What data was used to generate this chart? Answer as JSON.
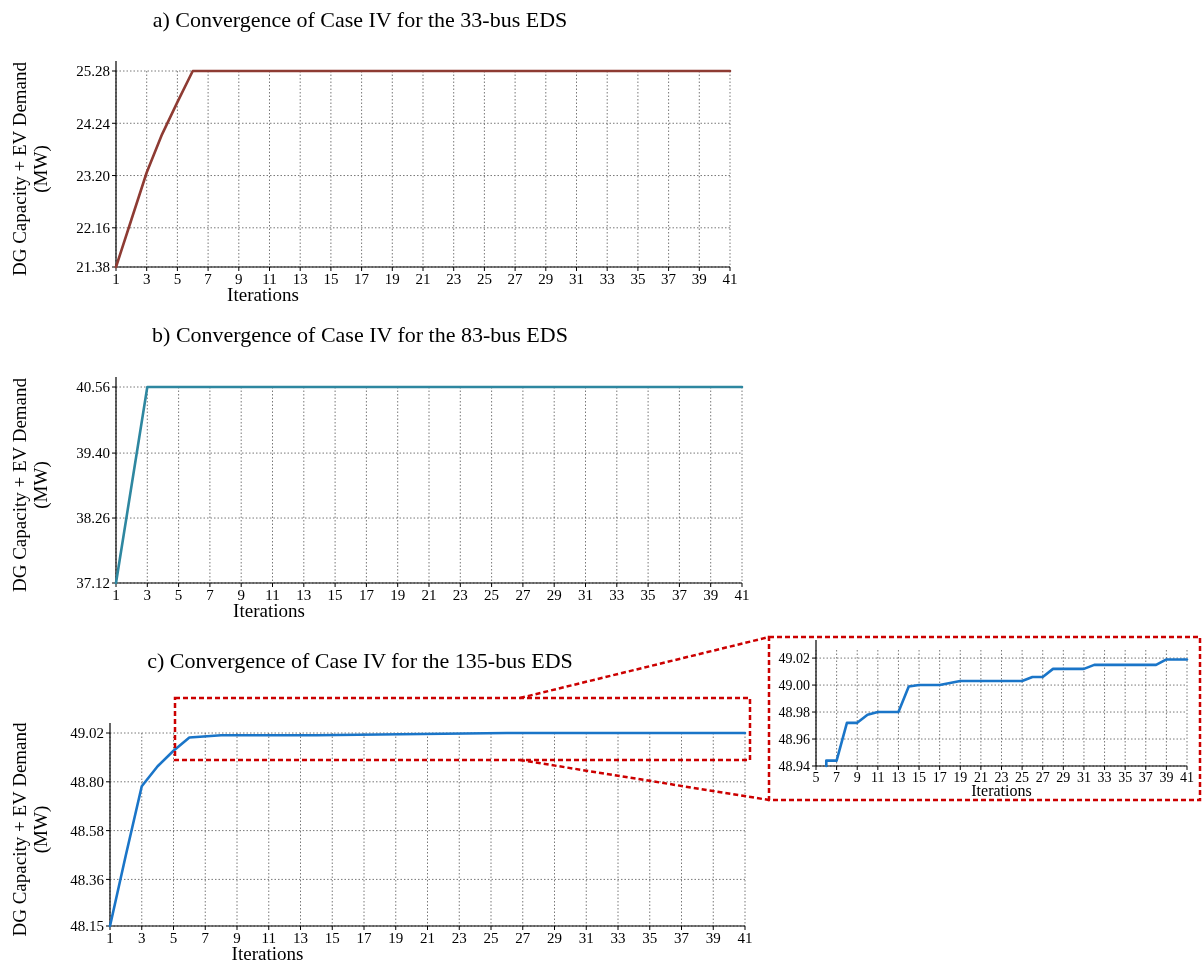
{
  "chart_data": [
    {
      "type": "line",
      "title": "a) Convergence of Case IV for the 33-bus EDS",
      "xlabel": "Iterations",
      "ylabel": "DG Capacity + EV Demand\n(MW)",
      "grid": true,
      "series": [
        {
          "color": "#8e3b33",
          "x": [
            1,
            2,
            3,
            4,
            5,
            6,
            41
          ],
          "values": [
            21.38,
            22.32,
            23.26,
            24.02,
            24.66,
            25.28,
            25.28
          ]
        }
      ],
      "xlim": [
        1,
        41
      ],
      "xticks": [
        1,
        3,
        5,
        7,
        9,
        11,
        13,
        15,
        17,
        19,
        21,
        23,
        25,
        27,
        29,
        31,
        33,
        35,
        37,
        39,
        41
      ],
      "ylim": [
        21.38,
        25.28
      ],
      "yticks": [
        21.38,
        22.16,
        {
          "value": 23.2,
          "label": "23.20"
        },
        24.24,
        25.28
      ]
    },
    {
      "type": "line",
      "title": "b) Convergence of Case IV for the 83-bus EDS",
      "xlabel": "Iterations",
      "ylabel": "DG Capacity + EV Demand\n(MW)",
      "grid": true,
      "series": [
        {
          "color": "#2e87a0",
          "x": [
            1,
            3,
            41
          ],
          "values": [
            37.12,
            40.56,
            40.56
          ]
        }
      ],
      "xlim": [
        1,
        41
      ],
      "xticks": [
        1,
        3,
        5,
        7,
        9,
        11,
        13,
        15,
        17,
        19,
        21,
        23,
        25,
        27,
        29,
        31,
        33,
        35,
        37,
        39,
        41
      ],
      "ylim": [
        37.12,
        40.56
      ],
      "yticks": [
        37.12,
        38.26,
        {
          "value": 39.4,
          "label": "39.40"
        },
        40.56
      ]
    },
    {
      "type": "line",
      "title": "c) Convergence of Case IV for the 135-bus EDS",
      "xlabel": "Iterations",
      "ylabel": "DG Capacity + EV Demand\n(MW)",
      "grid": true,
      "series": [
        {
          "color": "#1a75c8",
          "x": [
            1,
            2,
            3,
            4,
            5,
            6,
            8,
            14,
            26,
            41
          ],
          "values": [
            48.15,
            48.47,
            48.78,
            48.87,
            48.94,
            49.0,
            49.01,
            49.01,
            49.02,
            49.02
          ]
        }
      ],
      "xlim": [
        1,
        41
      ],
      "xticks": [
        1,
        3,
        5,
        7,
        9,
        11,
        13,
        15,
        17,
        19,
        21,
        23,
        25,
        27,
        29,
        31,
        33,
        35,
        37,
        39,
        41
      ],
      "ylim": [
        48.15,
        49.02
      ],
      "yticks": [
        48.15,
        48.36,
        48.58,
        {
          "value": 48.8,
          "label": "48.80"
        },
        49.02
      ]
    },
    {
      "type": "line",
      "xlabel": "Iterations",
      "grid": true,
      "series": [
        {
          "color": "#1a75c8",
          "x": [
            6,
            6,
            7,
            8,
            9,
            10,
            11,
            13,
            14,
            15,
            17,
            19,
            25,
            26,
            27,
            28,
            31,
            32,
            38,
            39,
            41
          ],
          "values": [
            48.94,
            48.944,
            48.944,
            48.972,
            48.972,
            48.978,
            48.98,
            48.98,
            48.999,
            49.0,
            49.0,
            49.003,
            49.003,
            49.006,
            49.006,
            49.012,
            49.012,
            49.015,
            49.015,
            49.019,
            49.019
          ]
        }
      ],
      "xlim": [
        5,
        41
      ],
      "xticks": [
        5,
        7,
        9,
        11,
        13,
        15,
        17,
        19,
        21,
        23,
        25,
        27,
        29,
        31,
        33,
        35,
        37,
        39,
        41
      ],
      "ylim": [
        48.94,
        49.026
      ],
      "yticks": [
        48.94,
        48.96,
        48.98,
        {
          "value": 49.0,
          "label": "49.00"
        },
        49.02
      ]
    }
  ]
}
